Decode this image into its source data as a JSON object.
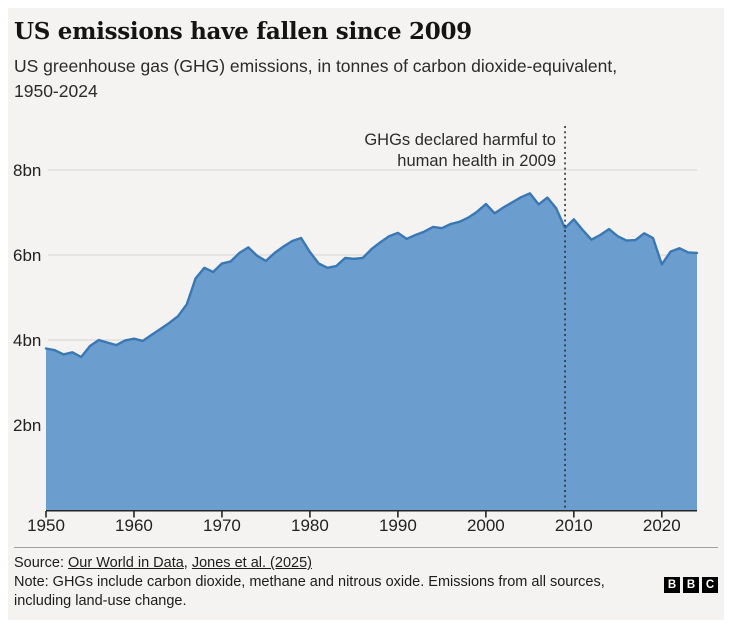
{
  "chart_data": {
    "type": "area",
    "title": "US emissions have fallen since 2009",
    "subtitle": "US greenhouse gas (GHG) emissions, in tonnes of carbon dioxide-equivalent, 1950-2024",
    "xlabel": "",
    "ylabel": "tonnes of CO2-equivalent (bn)",
    "xlim": [
      1950,
      2024
    ],
    "ylim": [
      0,
      8.8
    ],
    "grid": "horizontal",
    "legend": "none",
    "x_ticks": [
      1950,
      1960,
      1970,
      1980,
      1990,
      2000,
      2010,
      2020
    ],
    "y_ticks": [
      {
        "value": 2,
        "label": "2bn"
      },
      {
        "value": 4,
        "label": "4bn"
      },
      {
        "value": 6,
        "label": "6bn"
      },
      {
        "value": 8,
        "label": "8bn"
      }
    ],
    "x": [
      1950,
      1951,
      1952,
      1953,
      1954,
      1955,
      1956,
      1957,
      1958,
      1959,
      1960,
      1961,
      1962,
      1963,
      1964,
      1965,
      1966,
      1967,
      1968,
      1969,
      1970,
      1971,
      1972,
      1973,
      1974,
      1975,
      1976,
      1977,
      1978,
      1979,
      1980,
      1981,
      1982,
      1983,
      1984,
      1985,
      1986,
      1987,
      1988,
      1989,
      1990,
      1991,
      1992,
      1993,
      1994,
      1995,
      1996,
      1997,
      1998,
      1999,
      2000,
      2001,
      2002,
      2003,
      2004,
      2005,
      2006,
      2007,
      2008,
      2009,
      2010,
      2011,
      2012,
      2013,
      2014,
      2015,
      2016,
      2017,
      2018,
      2019,
      2020,
      2021,
      2022,
      2023,
      2024
    ],
    "values": [
      3.8,
      3.76,
      3.66,
      3.71,
      3.6,
      3.86,
      4.0,
      3.94,
      3.88,
      3.99,
      4.03,
      3.98,
      4.12,
      4.26,
      4.4,
      4.56,
      4.84,
      5.45,
      5.7,
      5.6,
      5.8,
      5.85,
      6.05,
      6.18,
      5.98,
      5.86,
      6.05,
      6.2,
      6.33,
      6.4,
      6.07,
      5.8,
      5.7,
      5.74,
      5.93,
      5.91,
      5.93,
      6.14,
      6.3,
      6.44,
      6.52,
      6.38,
      6.47,
      6.55,
      6.66,
      6.63,
      6.73,
      6.78,
      6.88,
      7.02,
      7.2,
      6.98,
      7.12,
      7.24,
      7.36,
      7.45,
      7.19,
      7.35,
      7.1,
      6.63,
      6.84,
      6.59,
      6.36,
      6.47,
      6.61,
      6.44,
      6.34,
      6.35,
      6.51,
      6.4,
      5.78,
      6.08,
      6.16,
      6.06,
      6.05
    ],
    "annotation": {
      "text": "GHGs declared harmful to human health in 2009",
      "x": 2009,
      "line_style": "dotted"
    }
  },
  "footer": {
    "source_prefix": "Source:",
    "source_link_1": "Our World in Data",
    "source_separator": ",",
    "source_link_2": "Jones et al. (2025)",
    "note": "Note: GHGs include carbon dioxide, methane and nitrous oxide. Emissions from all sources, including land-use change.",
    "logo_letters": [
      "B",
      "B",
      "C"
    ]
  },
  "colors": {
    "area_fill": "#6b9dcf",
    "area_line": "#3a78b4",
    "grid": "#dcdbd8",
    "axis": "#262626",
    "annotation_line": "#2f2f2f",
    "panel_bg": "#f4f3f1",
    "text": "#1c1c1c"
  }
}
